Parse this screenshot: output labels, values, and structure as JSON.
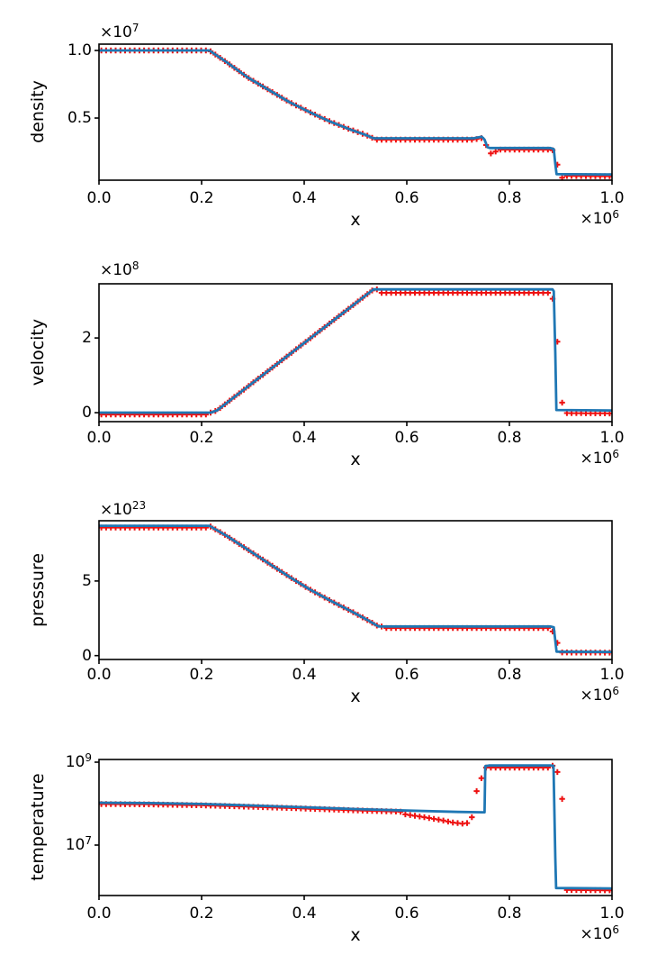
{
  "figure": {
    "background": "#ffffff"
  },
  "colors": {
    "line": "#1f77b4",
    "marker": "#ee1111",
    "axis": "#000000"
  },
  "marker_style": {
    "symbol": "plus",
    "count": 108,
    "arm": 3.2,
    "stroke_width": 2.0
  },
  "x_axis": {
    "label": "x",
    "ticks": [
      "0.0",
      "0.2",
      "0.4",
      "0.6",
      "0.8",
      "1.0"
    ],
    "tick_values": [
      0.0,
      0.2,
      0.4,
      0.6,
      0.8,
      1.0
    ],
    "offset": {
      "base": "×10",
      "exp": "6"
    },
    "range": [
      0.0,
      1.0
    ]
  },
  "chart_data": [
    {
      "type": "line",
      "ylabel": "density",
      "offset": {
        "base": "×10",
        "exp": "7"
      },
      "yticks": [
        {
          "label": "1.0",
          "v": 1.0
        },
        {
          "label": "0.5",
          "v": 0.5
        }
      ],
      "line": [
        [
          0,
          1.0
        ],
        [
          0.215,
          1.0
        ],
        [
          0.25,
          0.91
        ],
        [
          0.29,
          0.8
        ],
        [
          0.33,
          0.71
        ],
        [
          0.37,
          0.62
        ],
        [
          0.41,
          0.545
        ],
        [
          0.45,
          0.475
        ],
        [
          0.49,
          0.415
        ],
        [
          0.52,
          0.375
        ],
        [
          0.535,
          0.35
        ],
        [
          0.73,
          0.35
        ],
        [
          0.746,
          0.362
        ],
        [
          0.7515,
          0.34
        ],
        [
          0.757,
          0.285
        ],
        [
          0.762,
          0.278
        ],
        [
          0.88,
          0.278
        ],
        [
          0.8865,
          0.27
        ],
        [
          0.8895,
          0.16
        ],
        [
          0.892,
          0.085
        ],
        [
          1.0,
          0.082
        ]
      ],
      "marker_adjust": [
        {
          "x0": 0.54,
          "x1": 0.748,
          "dy": -0.01
        },
        {
          "x0": 0.762,
          "x1": 0.878,
          "dy": -0.012
        },
        {
          "x0": 0.905,
          "x1": 1.0,
          "dy": -0.013
        }
      ],
      "overrides": [
        [
          0.7515,
          0.3
        ],
        [
          0.7608,
          0.238
        ],
        [
          0.7701,
          0.252
        ],
        [
          0.8843,
          0.262
        ],
        [
          0.8935,
          0.155
        ],
        [
          0.9028,
          0.058
        ]
      ],
      "layout": {
        "scale": "linear",
        "top": 49,
        "height": 151,
        "vtop": 1.047,
        "vbottom": 0.04,
        "xtick_y": 209,
        "offset_row": 0
      }
    },
    {
      "type": "line",
      "ylabel": "velocity",
      "offset": {
        "base": "×10",
        "exp": "8"
      },
      "yticks": [
        {
          "label": "2",
          "v": 2.0
        },
        {
          "label": "0",
          "v": 0.0
        }
      ],
      "line": [
        [
          0,
          0.0
        ],
        [
          0.218,
          0.0
        ],
        [
          0.23,
          0.06
        ],
        [
          0.535,
          3.3
        ],
        [
          0.884,
          3.3
        ],
        [
          0.8865,
          3.25
        ],
        [
          0.8895,
          1.6
        ],
        [
          0.8915,
          0.07
        ],
        [
          1.0,
          0.06
        ]
      ],
      "marker_adjust": [
        {
          "x0": 0.0,
          "x1": 0.21,
          "dy": -0.05
        },
        {
          "x0": 0.55,
          "x1": 0.878,
          "dy": -0.09
        },
        {
          "x0": 0.905,
          "x1": 1.0,
          "dy": -0.08
        }
      ],
      "overrides": [
        [
          0.8843,
          3.05
        ],
        [
          0.8935,
          1.9
        ],
        [
          0.9028,
          0.27
        ]
      ],
      "layout": {
        "scale": "linear",
        "top": 315,
        "height": 153,
        "vtop": 3.45,
        "vbottom": -0.24,
        "xtick_y": 475,
        "offset_row": 1
      }
    },
    {
      "type": "line",
      "ylabel": "pressure",
      "offset": {
        "base": "×10",
        "exp": "23"
      },
      "yticks": [
        {
          "label": "5",
          "v": 5.0
        },
        {
          "label": "0",
          "v": 0.0
        }
      ],
      "line": [
        [
          0,
          8.7
        ],
        [
          0.215,
          8.7
        ],
        [
          0.25,
          8.0
        ],
        [
          0.29,
          7.1
        ],
        [
          0.33,
          6.2
        ],
        [
          0.37,
          5.3
        ],
        [
          0.41,
          4.45
        ],
        [
          0.45,
          3.7
        ],
        [
          0.49,
          3.0
        ],
        [
          0.52,
          2.45
        ],
        [
          0.545,
          1.95
        ],
        [
          0.88,
          1.95
        ],
        [
          0.8865,
          1.9
        ],
        [
          0.8895,
          1.0
        ],
        [
          0.892,
          0.26
        ],
        [
          1.0,
          0.25
        ]
      ],
      "marker_adjust": [
        {
          "x0": 0.0,
          "x1": 0.21,
          "dy": -0.12
        },
        {
          "x0": 0.56,
          "x1": 0.878,
          "dy": -0.1
        },
        {
          "x0": 0.9,
          "x1": 1.0,
          "dy": -0.05
        }
      ],
      "overrides": [
        [
          0.8843,
          1.62
        ],
        [
          0.8935,
          0.85
        ]
      ],
      "layout": {
        "scale": "linear",
        "top": 578,
        "height": 154,
        "vtop": 9.04,
        "vbottom": -0.26,
        "xtick_y": 738,
        "offset_row": 2
      }
    },
    {
      "type": "line",
      "ylabel": "temperature",
      "offset": null,
      "yticks": [
        {
          "base": "10",
          "exp": "9",
          "v": 1000000000.0
        },
        {
          "base": "10",
          "exp": "7",
          "v": 10000000.0
        }
      ],
      "line": [
        [
          0,
          105000000.0
        ],
        [
          0.1,
          103000000.0
        ],
        [
          0.2,
          98000000.0
        ],
        [
          0.3,
          90000000.0
        ],
        [
          0.4,
          82000000.0
        ],
        [
          0.5,
          74000000.0
        ],
        [
          0.6,
          68000000.0
        ],
        [
          0.7,
          63000000.0
        ],
        [
          0.748,
          62000000.0
        ],
        [
          0.7515,
          62000000.0
        ],
        [
          0.753,
          800000000.0
        ],
        [
          0.76,
          830000000.0
        ],
        [
          0.88,
          830000000.0
        ],
        [
          0.886,
          820000000.0
        ],
        [
          0.8895,
          5000000.0
        ],
        [
          0.891,
          920000.0
        ],
        [
          1.0,
          900000.0
        ]
      ],
      "marker_adjust": [
        {
          "x0": 0.0,
          "x1": 0.59,
          "f": 0.93
        },
        {
          "x0": 0.755,
          "x1": 0.878,
          "f": 0.89
        },
        {
          "x0": 0.908,
          "x1": 1.0,
          "f": 0.9
        }
      ],
      "overrides": [
        [
          0.6,
          55000000.0
        ],
        [
          0.6095,
          53000000.0
        ],
        [
          0.6187,
          51000000.0
        ],
        [
          0.628,
          49000000.0
        ],
        [
          0.637,
          47000000.0
        ],
        [
          0.6465,
          45000000.0
        ],
        [
          0.6558,
          43000000.0
        ],
        [
          0.665,
          41000000.0
        ],
        [
          0.6743,
          39000000.0
        ],
        [
          0.6835,
          37000000.0
        ],
        [
          0.6928,
          35000000.0
        ],
        [
          0.702,
          34000000.0
        ],
        [
          0.7113,
          33000000.0
        ],
        [
          0.7176,
          34000000.0
        ],
        [
          0.7269,
          47000000.0
        ],
        [
          0.7361,
          200000000.0
        ],
        [
          0.7454,
          410000000.0
        ],
        [
          0.7546,
          740000000.0
        ],
        [
          0.8935,
          580000000.0
        ],
        [
          0.9028,
          130000000.0
        ]
      ],
      "layout": {
        "scale": "log",
        "top": 843,
        "height": 151,
        "vtop": 9.065,
        "vbottom": 5.783,
        "xtick_y": 1003,
        "offset_row": -1
      }
    }
  ]
}
